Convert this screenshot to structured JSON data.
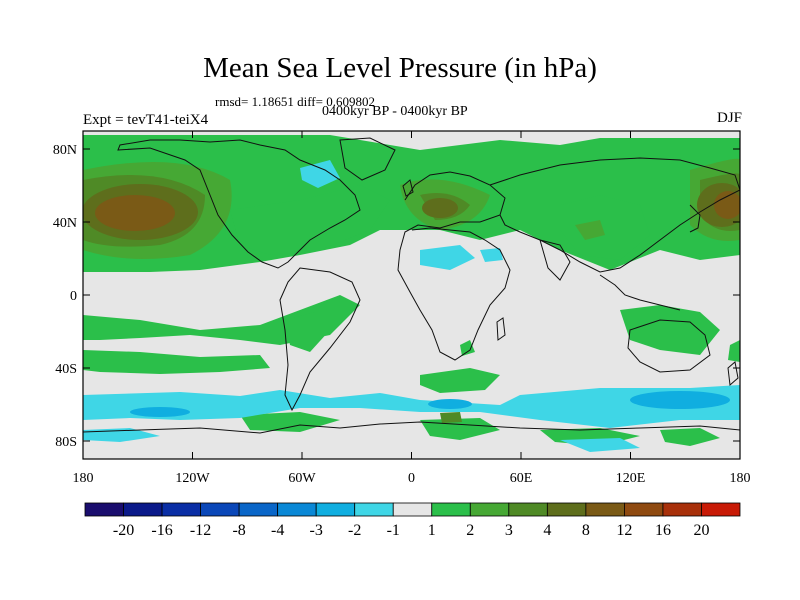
{
  "figure": {
    "title": "Mean Sea Level Pressure (in hPa)",
    "stats": "rmsd= 1.18651 diff= 0.609802",
    "period": "0400kyr BP - 0400kyr BP",
    "experiment": "Expt = tevT41-teiX4",
    "season": "DJF"
  },
  "axes": {
    "x_ticks": [
      "180",
      "120W",
      "60W",
      "0",
      "60E",
      "120E",
      "180"
    ],
    "y_ticks": [
      "80N",
      "40N",
      "0",
      "40S",
      "80S"
    ]
  },
  "colorbar": {
    "labels": [
      "-20",
      "-16",
      "-12",
      "-8",
      "-4",
      "-3",
      "-2",
      "-1",
      "1",
      "2",
      "3",
      "4",
      "8",
      "12",
      "16",
      "20"
    ],
    "colors": [
      "#1a0d6e",
      "#0b1a8a",
      "#0a2ea5",
      "#0a47b8",
      "#0a66c8",
      "#0a88d6",
      "#10aee0",
      "#3fd6e6",
      "#e6e6e6",
      "#2bbf4a",
      "#46a834",
      "#4f8a26",
      "#5e6e1c",
      "#7a5a16",
      "#8f4a10",
      "#a8300a",
      "#c81a06"
    ]
  },
  "map_colors": {
    "ocean_background": "#e6e6e6",
    "positive_1_2": "#2bbf4a",
    "positive_2_3": "#46a834",
    "positive_3_4": "#4f8a26",
    "positive_4_8": "#5e6e1c",
    "positive_8_12": "#7a5a16",
    "negative_1_2": "#3fd6e6",
    "negative_2_3": "#10aee0",
    "coastline": "#111111"
  }
}
